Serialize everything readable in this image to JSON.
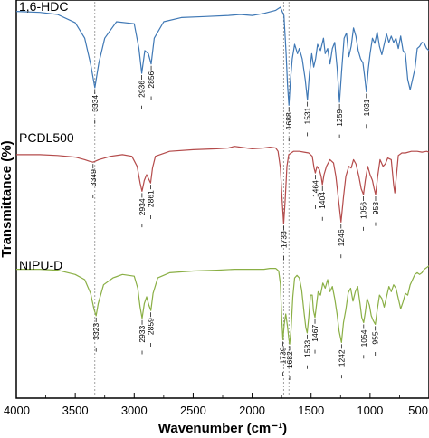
{
  "chart_data": {
    "type": "line",
    "xlabel": "Wavenumber (cm⁻¹)",
    "ylabel": "Transmittance (%)",
    "xlim": [
      4000,
      500
    ],
    "x_ticks": [
      4000,
      3500,
      3000,
      2500,
      2000,
      1500,
      1000,
      500
    ],
    "reference_lines": [
      3334,
      1733,
      1688
    ],
    "series": [
      {
        "name": "1,6-HDC",
        "color": "#3f78b5",
        "peaks": [
          3334,
          2936,
          2856,
          1688,
          1531,
          1259,
          1031
        ],
        "points": [
          [
            4000,
            0.96
          ],
          [
            3800,
            0.95
          ],
          [
            3650,
            0.93
          ],
          [
            3500,
            0.85
          ],
          [
            3420,
            0.7
          ],
          [
            3370,
            0.45
          ],
          [
            3334,
            0.22
          ],
          [
            3300,
            0.46
          ],
          [
            3250,
            0.7
          ],
          [
            3150,
            0.86
          ],
          [
            3000,
            0.84
          ],
          [
            2960,
            0.6
          ],
          [
            2936,
            0.36
          ],
          [
            2910,
            0.58
          ],
          [
            2880,
            0.55
          ],
          [
            2856,
            0.45
          ],
          [
            2830,
            0.7
          ],
          [
            2750,
            0.86
          ],
          [
            2600,
            0.9
          ],
          [
            2400,
            0.91
          ],
          [
            2200,
            0.92
          ],
          [
            2100,
            0.93
          ],
          [
            2000,
            0.92
          ],
          [
            1900,
            0.94
          ],
          [
            1800,
            0.97
          ],
          [
            1760,
            1.0
          ],
          [
            1730,
            0.92
          ],
          [
            1712,
            0.55
          ],
          [
            1700,
            0.24
          ],
          [
            1688,
            0.05
          ],
          [
            1676,
            0.28
          ],
          [
            1660,
            0.5
          ],
          [
            1640,
            0.64
          ],
          [
            1615,
            0.55
          ],
          [
            1600,
            0.6
          ],
          [
            1575,
            0.5
          ],
          [
            1550,
            0.3
          ],
          [
            1531,
            0.1
          ],
          [
            1515,
            0.35
          ],
          [
            1495,
            0.55
          ],
          [
            1478,
            0.42
          ],
          [
            1462,
            0.5
          ],
          [
            1445,
            0.64
          ],
          [
            1420,
            0.58
          ],
          [
            1395,
            0.7
          ],
          [
            1380,
            0.55
          ],
          [
            1360,
            0.6
          ],
          [
            1340,
            0.45
          ],
          [
            1320,
            0.6
          ],
          [
            1300,
            0.66
          ],
          [
            1280,
            0.42
          ],
          [
            1259,
            0.08
          ],
          [
            1240,
            0.4
          ],
          [
            1220,
            0.7
          ],
          [
            1200,
            0.75
          ],
          [
            1180,
            0.52
          ],
          [
            1160,
            0.62
          ],
          [
            1140,
            0.8
          ],
          [
            1120,
            0.72
          ],
          [
            1100,
            0.58
          ],
          [
            1080,
            0.5
          ],
          [
            1060,
            0.46
          ],
          [
            1045,
            0.32
          ],
          [
            1031,
            0.18
          ],
          [
            1015,
            0.4
          ],
          [
            1000,
            0.55
          ],
          [
            980,
            0.7
          ],
          [
            960,
            0.65
          ],
          [
            940,
            0.76
          ],
          [
            920,
            0.62
          ],
          [
            900,
            0.54
          ],
          [
            880,
            0.64
          ],
          [
            860,
            0.74
          ],
          [
            840,
            0.66
          ],
          [
            820,
            0.72
          ],
          [
            800,
            0.66
          ],
          [
            780,
            0.7
          ],
          [
            760,
            0.6
          ],
          [
            740,
            0.72
          ],
          [
            720,
            0.58
          ],
          [
            700,
            0.55
          ],
          [
            680,
            0.3
          ],
          [
            660,
            0.2
          ],
          [
            640,
            0.3
          ],
          [
            620,
            0.4
          ],
          [
            600,
            0.6
          ],
          [
            580,
            0.62
          ],
          [
            560,
            0.66
          ],
          [
            540,
            0.65
          ],
          [
            520,
            0.6
          ],
          [
            500,
            0.58
          ]
        ]
      },
      {
        "name": "PCDL500",
        "color": "#b44b4b",
        "peaks": [
          3349,
          2934,
          2861,
          1733,
          1464,
          1404,
          1246,
          1056,
          953
        ],
        "points": [
          [
            4000,
            0.86
          ],
          [
            3800,
            0.86
          ],
          [
            3650,
            0.85
          ],
          [
            3500,
            0.83
          ],
          [
            3420,
            0.8
          ],
          [
            3380,
            0.78
          ],
          [
            3349,
            0.77
          ],
          [
            3300,
            0.8
          ],
          [
            3200,
            0.84
          ],
          [
            3100,
            0.86
          ],
          [
            3020,
            0.84
          ],
          [
            2975,
            0.72
          ],
          [
            2950,
            0.52
          ],
          [
            2934,
            0.42
          ],
          [
            2915,
            0.55
          ],
          [
            2895,
            0.62
          ],
          [
            2875,
            0.56
          ],
          [
            2861,
            0.52
          ],
          [
            2845,
            0.7
          ],
          [
            2820,
            0.84
          ],
          [
            2700,
            0.9
          ],
          [
            2500,
            0.92
          ],
          [
            2300,
            0.93
          ],
          [
            2200,
            0.94
          ],
          [
            2150,
            0.96
          ],
          [
            2100,
            0.95
          ],
          [
            2000,
            0.93
          ],
          [
            1900,
            0.94
          ],
          [
            1850,
            0.95
          ],
          [
            1800,
            0.94
          ],
          [
            1780,
            0.9
          ],
          [
            1760,
            0.7
          ],
          [
            1745,
            0.3
          ],
          [
            1733,
            0.03
          ],
          [
            1720,
            0.32
          ],
          [
            1705,
            0.72
          ],
          [
            1690,
            0.86
          ],
          [
            1650,
            0.9
          ],
          [
            1600,
            0.9
          ],
          [
            1560,
            0.89
          ],
          [
            1520,
            0.88
          ],
          [
            1490,
            0.84
          ],
          [
            1475,
            0.7
          ],
          [
            1464,
            0.64
          ],
          [
            1450,
            0.72
          ],
          [
            1430,
            0.68
          ],
          [
            1415,
            0.6
          ],
          [
            1404,
            0.5
          ],
          [
            1390,
            0.62
          ],
          [
            1370,
            0.72
          ],
          [
            1340,
            0.8
          ],
          [
            1310,
            0.76
          ],
          [
            1290,
            0.6
          ],
          [
            1270,
            0.35
          ],
          [
            1246,
            0.05
          ],
          [
            1225,
            0.35
          ],
          [
            1205,
            0.6
          ],
          [
            1180,
            0.72
          ],
          [
            1160,
            0.7
          ],
          [
            1140,
            0.8
          ],
          [
            1120,
            0.75
          ],
          [
            1095,
            0.6
          ],
          [
            1075,
            0.45
          ],
          [
            1056,
            0.38
          ],
          [
            1040,
            0.55
          ],
          [
            1020,
            0.72
          ],
          [
            1000,
            0.62
          ],
          [
            980,
            0.55
          ],
          [
            965,
            0.45
          ],
          [
            953,
            0.38
          ],
          [
            935,
            0.6
          ],
          [
            915,
            0.8
          ],
          [
            890,
            0.72
          ],
          [
            870,
            0.75
          ],
          [
            850,
            0.82
          ],
          [
            820,
            0.8
          ],
          [
            800,
            0.5
          ],
          [
            790,
            0.4
          ],
          [
            780,
            0.55
          ],
          [
            760,
            0.85
          ],
          [
            730,
            0.88
          ],
          [
            700,
            0.88
          ],
          [
            650,
            0.9
          ],
          [
            600,
            0.9
          ],
          [
            560,
            0.89
          ],
          [
            520,
            0.9
          ],
          [
            500,
            0.89
          ]
        ]
      },
      {
        "name": "NIPU-D",
        "color": "#8aaf45",
        "peaks": [
          3323,
          2933,
          2859,
          1739,
          1682,
          1533,
          1467,
          1242,
          1054,
          955
        ],
        "points": [
          [
            4000,
            0.92
          ],
          [
            3800,
            0.92
          ],
          [
            3650,
            0.91
          ],
          [
            3500,
            0.86
          ],
          [
            3420,
            0.8
          ],
          [
            3370,
            0.64
          ],
          [
            3340,
            0.45
          ],
          [
            3323,
            0.38
          ],
          [
            3305,
            0.52
          ],
          [
            3260,
            0.74
          ],
          [
            3180,
            0.82
          ],
          [
            3100,
            0.86
          ],
          [
            3000,
            0.84
          ],
          [
            2970,
            0.7
          ],
          [
            2950,
            0.48
          ],
          [
            2933,
            0.35
          ],
          [
            2915,
            0.52
          ],
          [
            2895,
            0.6
          ],
          [
            2875,
            0.5
          ],
          [
            2859,
            0.44
          ],
          [
            2840,
            0.64
          ],
          [
            2800,
            0.82
          ],
          [
            2700,
            0.88
          ],
          [
            2500,
            0.9
          ],
          [
            2300,
            0.91
          ],
          [
            2150,
            0.92
          ],
          [
            2000,
            0.92
          ],
          [
            1900,
            0.92
          ],
          [
            1850,
            0.93
          ],
          [
            1800,
            0.93
          ],
          [
            1775,
            0.9
          ],
          [
            1760,
            0.75
          ],
          [
            1748,
            0.32
          ],
          [
            1739,
            0.1
          ],
          [
            1728,
            0.28
          ],
          [
            1715,
            0.4
          ],
          [
            1700,
            0.25
          ],
          [
            1690,
            0.12
          ],
          [
            1682,
            0.05
          ],
          [
            1670,
            0.22
          ],
          [
            1655,
            0.6
          ],
          [
            1640,
            0.82
          ],
          [
            1620,
            0.85
          ],
          [
            1600,
            0.82
          ],
          [
            1580,
            0.68
          ],
          [
            1560,
            0.42
          ],
          [
            1545,
            0.24
          ],
          [
            1533,
            0.18
          ],
          [
            1520,
            0.36
          ],
          [
            1505,
            0.62
          ],
          [
            1490,
            0.62
          ],
          [
            1480,
            0.44
          ],
          [
            1467,
            0.36
          ],
          [
            1455,
            0.5
          ],
          [
            1440,
            0.66
          ],
          [
            1420,
            0.62
          ],
          [
            1400,
            0.76
          ],
          [
            1380,
            0.7
          ],
          [
            1360,
            0.8
          ],
          [
            1340,
            0.66
          ],
          [
            1320,
            0.72
          ],
          [
            1300,
            0.58
          ],
          [
            1280,
            0.4
          ],
          [
            1262,
            0.2
          ],
          [
            1242,
            0.07
          ],
          [
            1225,
            0.3
          ],
          [
            1205,
            0.45
          ],
          [
            1185,
            0.65
          ],
          [
            1165,
            0.7
          ],
          [
            1145,
            0.55
          ],
          [
            1125,
            0.66
          ],
          [
            1105,
            0.72
          ],
          [
            1085,
            0.52
          ],
          [
            1070,
            0.36
          ],
          [
            1054,
            0.3
          ],
          [
            1040,
            0.42
          ],
          [
            1025,
            0.58
          ],
          [
            1005,
            0.5
          ],
          [
            990,
            0.38
          ],
          [
            972,
            0.32
          ],
          [
            955,
            0.28
          ],
          [
            940,
            0.44
          ],
          [
            920,
            0.62
          ],
          [
            900,
            0.58
          ],
          [
            880,
            0.48
          ],
          [
            860,
            0.6
          ],
          [
            840,
            0.72
          ],
          [
            820,
            0.66
          ],
          [
            800,
            0.74
          ],
          [
            780,
            0.7
          ],
          [
            760,
            0.58
          ],
          [
            740,
            0.46
          ],
          [
            720,
            0.54
          ],
          [
            700,
            0.64
          ],
          [
            680,
            0.62
          ],
          [
            660,
            0.74
          ],
          [
            640,
            0.8
          ],
          [
            620,
            0.86
          ],
          [
            600,
            0.88
          ],
          [
            580,
            0.86
          ],
          [
            560,
            0.88
          ],
          [
            540,
            0.92
          ],
          [
            520,
            0.94
          ],
          [
            500,
            0.96
          ]
        ]
      }
    ]
  }
}
